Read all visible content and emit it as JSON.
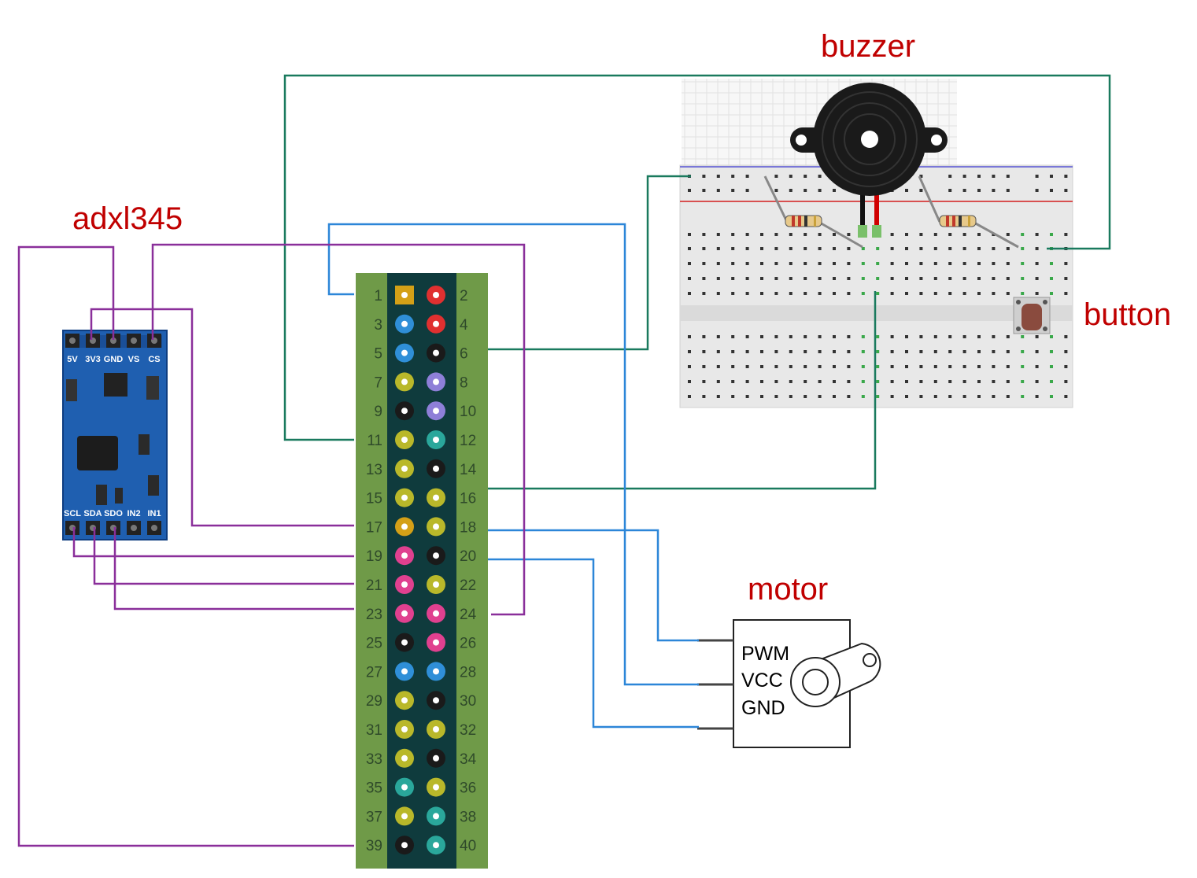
{
  "labels": {
    "buzzer": "buzzer",
    "button": "button",
    "adxl345": "adxl345",
    "motor": "motor"
  },
  "adxl_header_top": [
    "5V",
    "3V3",
    "GND",
    "VS",
    "CS"
  ],
  "adxl_header_bottom": [
    "SCL",
    "SDA",
    "SDO",
    "IN2",
    "IN1"
  ],
  "motor_pins": [
    "PWM",
    "VCC",
    "GND"
  ],
  "gpio_pins": {
    "left": [
      1,
      3,
      5,
      7,
      9,
      11,
      13,
      15,
      17,
      19,
      21,
      23,
      25,
      27,
      29,
      31,
      33,
      35,
      37,
      39
    ],
    "right": [
      2,
      4,
      6,
      8,
      10,
      12,
      14,
      16,
      18,
      20,
      22,
      24,
      26,
      28,
      30,
      32,
      34,
      36,
      38,
      40
    ],
    "left_colors": [
      "#d4a017",
      "#2f8fd8",
      "#2f8fd8",
      "#b9b82a",
      "#1a1a1a",
      "#b9b82a",
      "#b9b82a",
      "#b9b82a",
      "#d4a017",
      "#e0408f",
      "#e0408f",
      "#e0408f",
      "#1a1a1a",
      "#2f8fd8",
      "#b9b82a",
      "#b9b82a",
      "#b9b82a",
      "#2aa79b",
      "#b9b82a",
      "#1a1a1a"
    ],
    "right_colors": [
      "#e03030",
      "#e03030",
      "#1a1a1a",
      "#8e7fd8",
      "#8e7fd8",
      "#2aa79b",
      "#1a1a1a",
      "#b9b82a",
      "#b9b82a",
      "#1a1a1a",
      "#b9b82a",
      "#e0408f",
      "#e0408f",
      "#2f8fd8",
      "#1a1a1a",
      "#b9b82a",
      "#1a1a1a",
      "#b9b82a",
      "#2aa79b",
      "#2aa79b"
    ]
  },
  "colors": {
    "wire_green": "#1a7a5e",
    "wire_blue": "#2c86d8",
    "wire_purple": "#8a2f9a",
    "header_green": "#6f9a48",
    "header_dark": "#0f3b3d",
    "module_blue": "#1f5fb0",
    "title_red": "#c00000"
  }
}
